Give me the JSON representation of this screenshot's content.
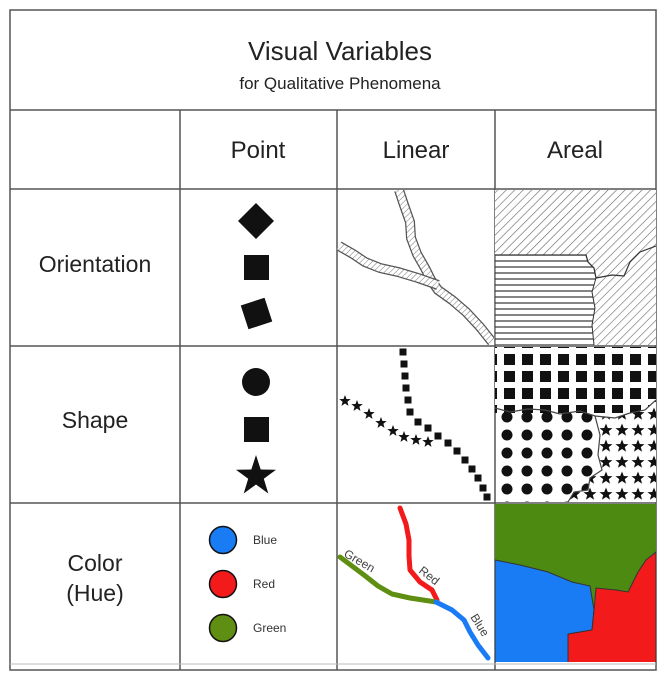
{
  "title": "Visual Variables",
  "subtitle": "for Qualitative Phenomena",
  "columns": [
    "Point",
    "Linear",
    "Areal"
  ],
  "rows": {
    "orientation": "Orientation",
    "shape": "Shape",
    "color_line1": "Color",
    "color_line2": "(Hue)"
  },
  "legend": [
    {
      "label": "Blue",
      "color": "#1a7cf5"
    },
    {
      "label": "Red",
      "color": "#f21a1a"
    },
    {
      "label": "Green",
      "color": "#5f8f12"
    }
  ],
  "line_labels": {
    "green": "Green",
    "red": "Red",
    "blue": "Blue"
  },
  "colors": {
    "grid": "#555555",
    "ink": "#111111",
    "blue": "#1a7cf5",
    "red": "#f21a1a",
    "green": "#5f8f12",
    "area_green": "#4d8a12"
  }
}
